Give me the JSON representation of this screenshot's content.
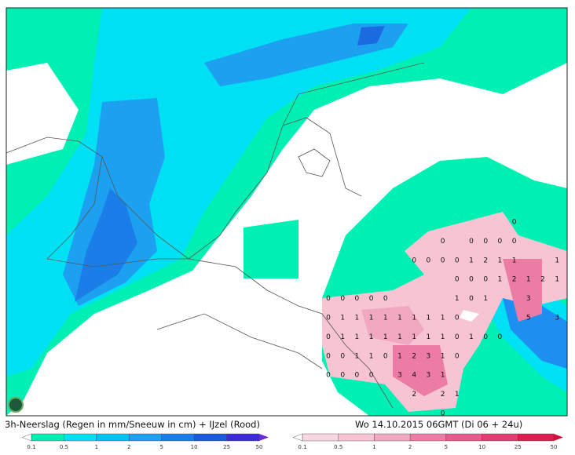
{
  "caption": "3h-Neerslag (Regen in mm/Sneeuw in cm) + IJzel (Rood)",
  "valid_time": "Wo 14.10.2015 06GMT (Di 06 + 24u)",
  "legend_precip": {
    "labels": [
      0.1,
      0.5,
      1,
      2,
      5,
      10,
      25,
      50
    ]
  },
  "legend_ice": {
    "labels": [
      0.1,
      0.5,
      1,
      2,
      5,
      10,
      25,
      50
    ]
  },
  "grid_values": [
    [
      null,
      null,
      null,
      null,
      null,
      null,
      null,
      null,
      null,
      null,
      null,
      null,
      null,
      0,
      null,
      null,
      null
    ],
    [
      null,
      null,
      null,
      null,
      null,
      null,
      null,
      null,
      0,
      null,
      0,
      0,
      0,
      0,
      null,
      null,
      null
    ],
    [
      null,
      null,
      null,
      null,
      null,
      null,
      0,
      0,
      0,
      0,
      1,
      2,
      1,
      1,
      null,
      null,
      1
    ],
    [
      null,
      null,
      null,
      null,
      null,
      null,
      null,
      null,
      null,
      0,
      0,
      0,
      1,
      2,
      1,
      2,
      1
    ],
    [
      0,
      0,
      0,
      0,
      0,
      null,
      null,
      null,
      null,
      1,
      0,
      1,
      null,
      null,
      3,
      null,
      null
    ],
    [
      0,
      1,
      1,
      1,
      1,
      1,
      1,
      1,
      1,
      0,
      null,
      null,
      null,
      null,
      5,
      null,
      3
    ],
    [
      0,
      1,
      1,
      1,
      1,
      1,
      1,
      1,
      1,
      0,
      1,
      0,
      0,
      null,
      null,
      null,
      null
    ],
    [
      0,
      0,
      1,
      1,
      0,
      1,
      2,
      3,
      1,
      0,
      null,
      null,
      null,
      null,
      null,
      null,
      null
    ],
    [
      0,
      0,
      0,
      0,
      null,
      3,
      4,
      3,
      1,
      null,
      null,
      null,
      null,
      null,
      null,
      null,
      null
    ],
    [
      null,
      null,
      null,
      null,
      null,
      null,
      2,
      null,
      2,
      1,
      null,
      null,
      null,
      null,
      null,
      null,
      null
    ],
    [
      null,
      null,
      null,
      null,
      null,
      null,
      null,
      null,
      0,
      null,
      null,
      null,
      null,
      null,
      null,
      null,
      null
    ]
  ]
}
